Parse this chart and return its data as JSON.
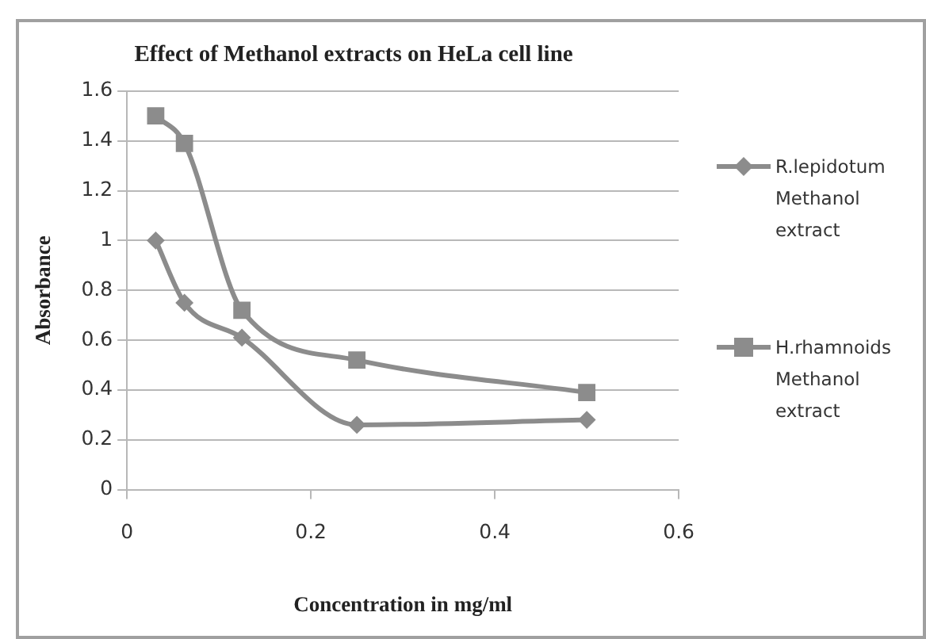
{
  "chart_data": {
    "type": "line",
    "title": "Effect of Methanol extracts on HeLa cell line",
    "xlabel": "Concentration in mg/ml",
    "ylabel": "Absorbance",
    "x": [
      0.03125,
      0.0625,
      0.125,
      0.25,
      0.5
    ],
    "series": [
      {
        "name": "R.lepidotum Methanol extract",
        "color": "#8c8c8c",
        "marker": "diamond",
        "values": [
          1.0,
          0.75,
          0.61,
          0.26,
          0.28
        ]
      },
      {
        "name": "H.rhamnoids Methanol extract",
        "color": "#8c8c8c",
        "marker": "square",
        "values": [
          1.5,
          1.39,
          0.72,
          0.52,
          0.39
        ]
      }
    ],
    "xlim": [
      0,
      0.6
    ],
    "xticks": [
      0,
      0.2,
      0.4,
      0.6
    ],
    "ylim": [
      0,
      1.6
    ],
    "yticks": [
      0,
      0.2,
      0.4,
      0.6,
      0.8,
      1,
      1.2,
      1.4,
      1.6
    ],
    "grid": "y",
    "legend": "right"
  }
}
